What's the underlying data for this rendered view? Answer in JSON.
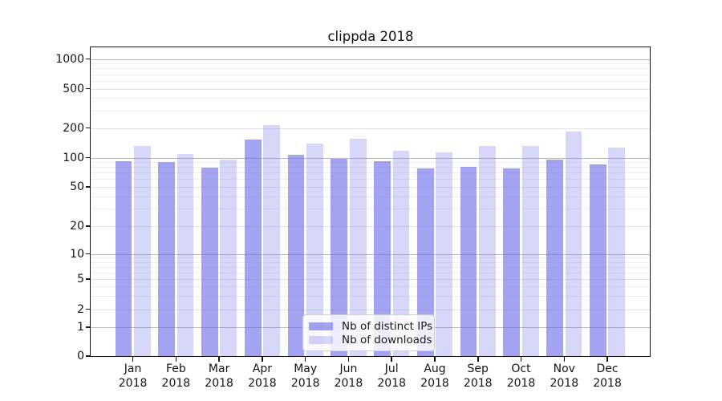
{
  "chart_data": {
    "type": "bar",
    "title": "clippda 2018",
    "categories": [
      "Jan",
      "Feb",
      "Mar",
      "Apr",
      "May",
      "Jun",
      "Jul",
      "Aug",
      "Sep",
      "Oct",
      "Nov",
      "Dec"
    ],
    "year_label": "2018",
    "series": [
      {
        "name": "Nb of distinct IPs",
        "color": "rgba(101,102,232,0.60)",
        "values": [
          91,
          90,
          79,
          153,
          107,
          97,
          92,
          77,
          80,
          78,
          95,
          85
        ]
      },
      {
        "name": "Nb of downloads",
        "color": "rgba(101,102,232,0.26)",
        "values": [
          130,
          109,
          95,
          215,
          140,
          155,
          118,
          113,
          132,
          132,
          185,
          127
        ]
      }
    ],
    "y_ticks": [
      0,
      1,
      2,
      5,
      10,
      20,
      50,
      100,
      200,
      500,
      1000
    ],
    "yscale": "log-with-zero",
    "ylim": [
      0,
      1000
    ],
    "grid": true,
    "legend_position": "bottom-center"
  },
  "colors": {
    "bar_base": "#6566e8",
    "major_grid": "#b8b8b8",
    "minor_grid": "#efefef",
    "spine": "#141414"
  }
}
